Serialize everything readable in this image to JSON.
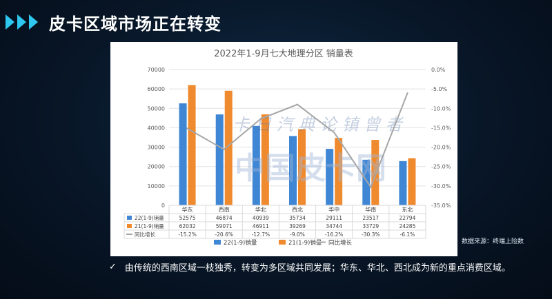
{
  "page": {
    "title": "皮卡区域市场正在转变",
    "source": "数据来源：终端上险数",
    "bullet": "由传统的西南区域一枝独秀，转变为多区域共同发展；华东、华北、西北成为新的重点消费区域。",
    "watermark_line1": "卡 日 汽 典 论 镇 曾 者",
    "watermark_line2": "中国皮卡网"
  },
  "colors": {
    "accent": "#2ec7f0",
    "series_22": "#3f86d4",
    "series_21": "#f08a2f",
    "series_growth": "#a6a6a6"
  },
  "chart_data": {
    "type": "bar",
    "title": "2022年1-9月七大地理分区 销量表",
    "categories": [
      "华东",
      "西南",
      "华北",
      "西北",
      "华中",
      "华南",
      "东北"
    ],
    "series": [
      {
        "name": "22(1-9)销量",
        "type": "bar",
        "values": [
          52575,
          46874,
          40939,
          35734,
          29111,
          23517,
          22794
        ]
      },
      {
        "name": "21(1-9)销量",
        "type": "bar",
        "values": [
          62032,
          59071,
          46911,
          39269,
          34744,
          33729,
          24285
        ]
      },
      {
        "name": "同比增长",
        "type": "line",
        "axis": "right",
        "values": [
          -15.2,
          -20.6,
          -12.7,
          -9.0,
          -16.2,
          -30.3,
          -6.1
        ]
      }
    ],
    "table_rows": [
      [
        "52575",
        "46874",
        "40939",
        "35734",
        "29111",
        "23517",
        "22794"
      ],
      [
        "62032",
        "59071",
        "46911",
        "39269",
        "34744",
        "33729",
        "24285"
      ],
      [
        "-15.2%",
        "-20.6%",
        "-12.7%",
        "-9.0%",
        "-16.2%",
        "-30.3%",
        "-6.1%"
      ]
    ],
    "table_row_labels": [
      "22(1-9)销量",
      "21(1-9)销量",
      "同比增长"
    ],
    "ylim_left": [
      0,
      70000
    ],
    "yticks_left": [
      "0",
      "10000",
      "20000",
      "30000",
      "40000",
      "50000",
      "60000",
      "70000"
    ],
    "ylim_right": [
      -35,
      0
    ],
    "yticks_right": [
      "0.0%",
      "-5.0%",
      "-10.0%",
      "-15.0%",
      "-20.0%",
      "-25.0%",
      "-30.0%",
      "-35.0%"
    ],
    "legend": [
      "22(1-9)销量",
      "21(1-9)销量",
      "同比增长"
    ],
    "legend_position": "bottom"
  }
}
